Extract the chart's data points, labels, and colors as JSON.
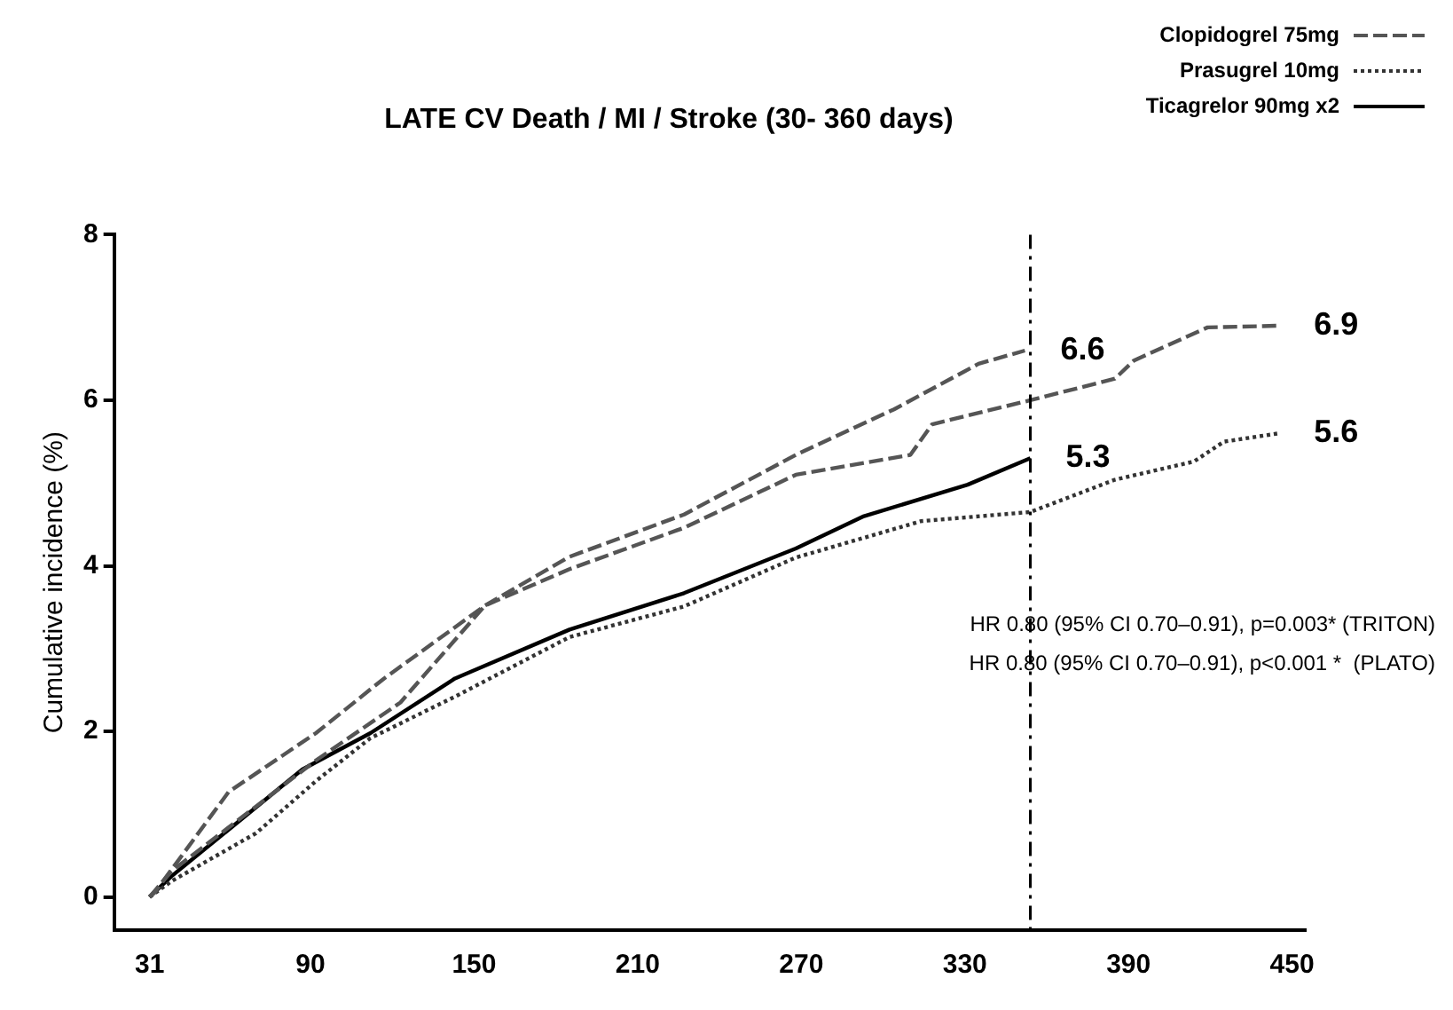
{
  "chart_data": {
    "type": "line",
    "title": "LATE CV Death / MI / Stroke (30- 360 days)",
    "ylabel": "Cumulative incidence (%)",
    "xlim": [
      18,
      455
    ],
    "xticks": [
      31,
      90,
      150,
      210,
      270,
      330,
      390,
      450
    ],
    "ylim": [
      -0.4,
      8
    ],
    "yticks": [
      0,
      2,
      4,
      6,
      8
    ],
    "grid": false,
    "legend": "top right",
    "marker": "none",
    "series": [
      {
        "name": "Clopidogrel 75mg",
        "color": "#555555",
        "line_style": "dashed",
        "x": [
          31,
          33,
          60,
          92,
          117,
          154,
          185,
          227,
          268,
          304,
          335,
          352
        ],
        "values": [
          0,
          0.06,
          1.27,
          1.98,
          2.64,
          3.52,
          4.11,
          4.62,
          5.34,
          5.89,
          6.44,
          6.6
        ]
      },
      {
        "color": "#555555",
        "line_style": "dashed",
        "x": [
          31,
          39,
          92,
          123,
          154,
          185,
          227,
          268,
          310,
          318,
          354,
          385,
          392,
          419,
          445
        ],
        "values": [
          0,
          0.31,
          1.65,
          2.35,
          3.52,
          3.96,
          4.46,
          5.1,
          5.34,
          5.71,
          6.0,
          6.26,
          6.48,
          6.88,
          6.9
        ]
      },
      {
        "name": "Prasugrel 10mg",
        "color": "#333333",
        "line_style": "dotted",
        "x": [
          31,
          39,
          70,
          92,
          112,
          143,
          185,
          227,
          268,
          314,
          354,
          385,
          414,
          425,
          445
        ],
        "values": [
          0,
          0.19,
          0.77,
          1.4,
          1.92,
          2.42,
          3.14,
          3.51,
          4.1,
          4.54,
          4.65,
          5.04,
          5.26,
          5.5,
          5.6
        ]
      },
      {
        "name": "Ticagrelor 90mg x2",
        "color": "#000000",
        "line_style": "solid",
        "x": [
          31,
          39,
          87,
          112,
          143,
          185,
          227,
          268,
          293,
          331,
          354
        ],
        "values": [
          0,
          0.25,
          1.54,
          1.98,
          2.64,
          3.23,
          3.67,
          4.21,
          4.6,
          4.98,
          5.3
        ]
      }
    ],
    "ref_lines": [
      {
        "axis": "x",
        "value": 354,
        "color": "#000000",
        "line_style": "dashdot"
      }
    ],
    "annotations": [
      {
        "text": "6.6",
        "x": 352,
        "y": 6.6
      },
      {
        "text": "5.3",
        "x": 354,
        "y": 5.3
      },
      {
        "text": "6.9",
        "x": 445,
        "y": 6.9
      },
      {
        "text": "5.6",
        "x": 445,
        "y": 5.6
      },
      "HR 0.80 (95% CI 0.70–0.91), p=0.003* (TRITON)",
      "HR 0.80 (95% CI 0.70–0.91), p<0.001 *  (PLATO)"
    ]
  }
}
